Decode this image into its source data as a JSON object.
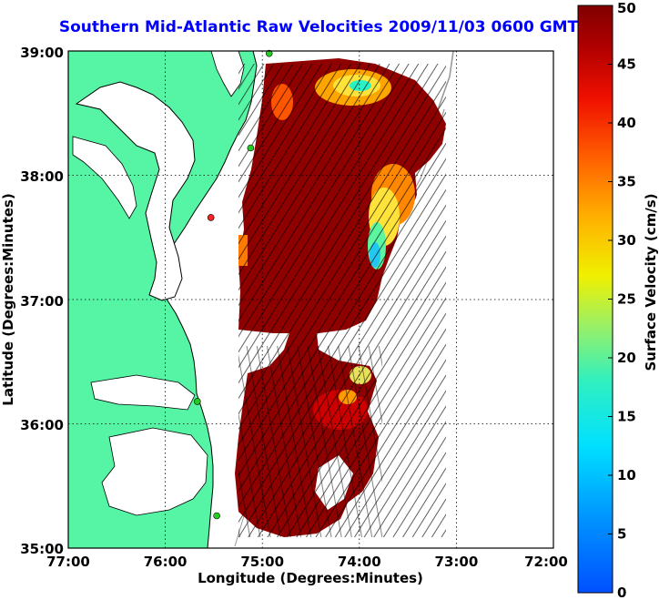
{
  "title": "Southern Mid-Atlantic Raw Velocities 2009/11/03 0600 GMT",
  "map": {
    "xlabel": "Longitude (Degrees:Minutes)",
    "ylabel": "Latitude (Degrees:Minutes)",
    "x_ticks": [
      "77:00",
      "76:00",
      "75:00",
      "74:00",
      "73:00",
      "72:00"
    ],
    "y_ticks": [
      "39:00",
      "38:00",
      "37:00",
      "36:00",
      "35:00"
    ],
    "x_range": [
      -77,
      -72
    ],
    "y_range": [
      35,
      39
    ],
    "grid": true,
    "colors": {
      "land": "#55f5a5",
      "water": "#ffffff",
      "coastline": "#000000",
      "bathymetry": "#9a9a9a",
      "vectors": "#000000",
      "station_active": "#22cc22",
      "station_inactive": "#ff2222"
    }
  },
  "colorbar": {
    "label": "Surface Velocity (cm/s)",
    "ticks": [
      "0",
      "5",
      "10",
      "15",
      "20",
      "25",
      "30",
      "35",
      "40",
      "45",
      "50"
    ],
    "range": [
      0,
      50
    ],
    "colormap": "jet"
  },
  "stations": [
    {
      "lon": -74.93,
      "lat": 38.98,
      "status": "active"
    },
    {
      "lon": -75.12,
      "lat": 38.22,
      "status": "active"
    },
    {
      "lon": -75.53,
      "lat": 37.66,
      "status": "inactive"
    },
    {
      "lon": -75.67,
      "lat": 36.18,
      "status": "active"
    },
    {
      "lon": -75.47,
      "lat": 35.26,
      "status": "active"
    }
  ]
}
